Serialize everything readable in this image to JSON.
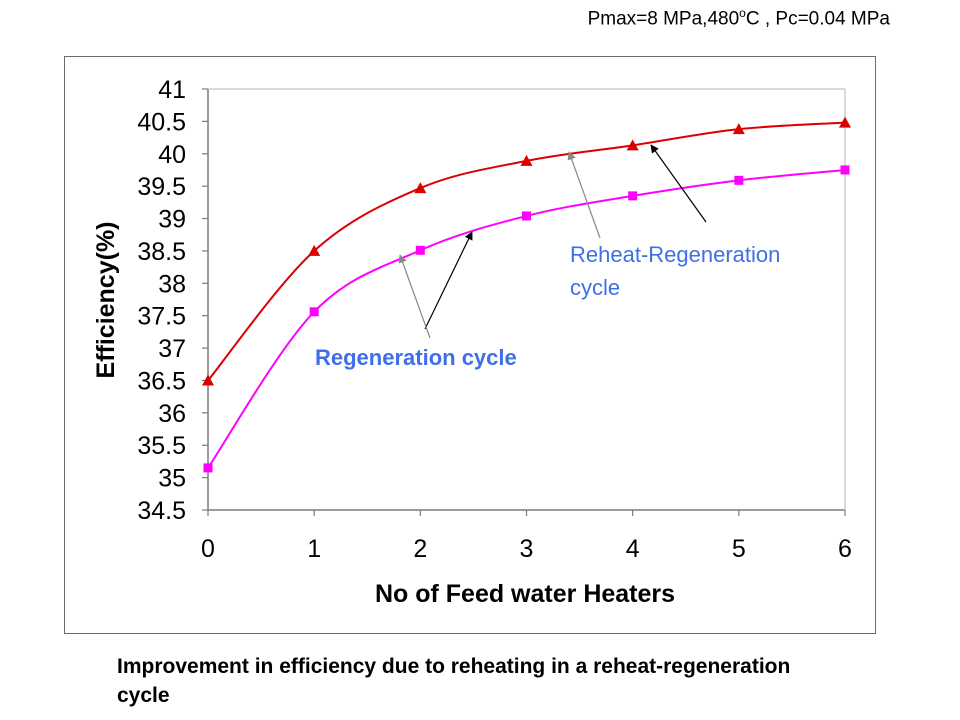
{
  "header": {
    "note_prefix": "Pmax=8 MPa,480",
    "note_sup": "o",
    "note_suffix": "C , Pc=0.04 MPa"
  },
  "caption": "Improvement in efficiency due to reheating in a reheat-regeneration cycle",
  "colors": {
    "reheat_regeneration": "#dd0000",
    "regeneration": "#ff00ff",
    "annotation_text": "#3f6fe8",
    "grid": "#cfcfcf"
  },
  "chart_data": {
    "type": "line",
    "xlabel": "No of Feed water Heaters",
    "ylabel": "Efficiency(%)",
    "x": [
      0,
      1,
      2,
      3,
      4,
      5,
      6
    ],
    "xlim": [
      0,
      6
    ],
    "ylim": [
      34.5,
      41
    ],
    "x_ticks": [
      "0",
      "1",
      "2",
      "3",
      "4",
      "5",
      "6"
    ],
    "y_ticks": [
      "34.5",
      "35",
      "35.5",
      "36",
      "36.5",
      "37",
      "37.5",
      "38",
      "38.5",
      "39",
      "39.5",
      "40",
      "40.5",
      "41"
    ],
    "grid": false,
    "series": [
      {
        "name": "Reheat-Regeneration cycle",
        "marker": "triangle",
        "values": [
          36.5,
          38.5,
          39.47,
          39.89,
          40.13,
          40.38,
          40.48
        ]
      },
      {
        "name": "Regeneration cycle",
        "marker": "square",
        "values": [
          35.15,
          37.56,
          38.51,
          39.04,
          39.35,
          39.59,
          39.75
        ]
      }
    ],
    "annotations": [
      {
        "text_line1": "Reheat-Regeneration",
        "text_line2": "cycle"
      },
      {
        "text_line1": "Regeneration cycle",
        "bold": true
      }
    ]
  }
}
